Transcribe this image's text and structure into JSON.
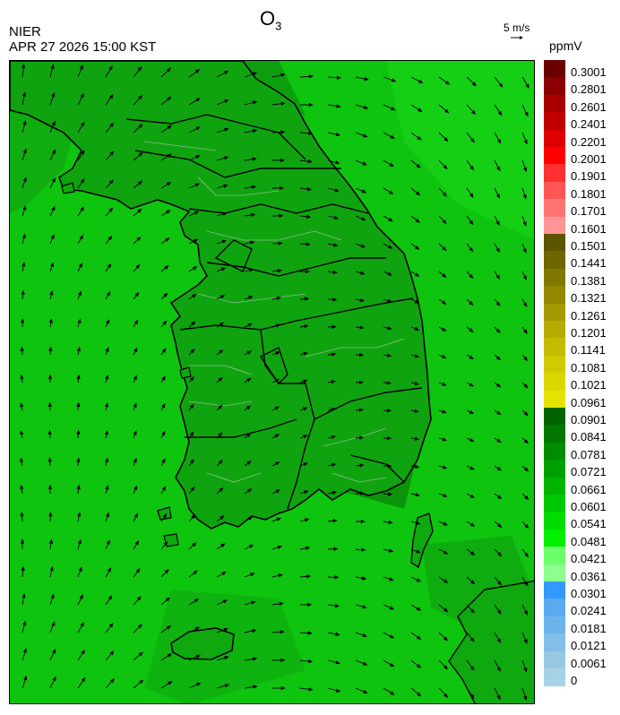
{
  "header": {
    "pollutant": "O",
    "pollutant_sub": "3",
    "agency": "NIER",
    "timestamp": "APR 27 2026 15:00 KST",
    "wind_reference": "5 m/s",
    "unit": "ppmV"
  },
  "map": {
    "region": "Korean Peninsula",
    "sea_color": "#0fc40f",
    "land_color": "#0fa80f",
    "coast_color": "#000000",
    "admin_border_color": "#c8c8c8",
    "wind_arrow_color": "#000000"
  },
  "legend": {
    "bins": [
      {
        "label": "0.3001",
        "color": "#6b0000"
      },
      {
        "label": "0.2801",
        "color": "#8b0000"
      },
      {
        "label": "0.2601",
        "color": "#a80000"
      },
      {
        "label": "0.2401",
        "color": "#c00000"
      },
      {
        "label": "0.2201",
        "color": "#dc0000"
      },
      {
        "label": "0.2001",
        "color": "#ff0000"
      },
      {
        "label": "0.1901",
        "color": "#ff3030"
      },
      {
        "label": "0.1801",
        "color": "#ff5555"
      },
      {
        "label": "0.1701",
        "color": "#ff7575"
      },
      {
        "label": "0.1601",
        "color": "#ff9696"
      },
      {
        "label": "0.1501",
        "color": "#5c5500"
      },
      {
        "label": "0.1441",
        "color": "#6e6600"
      },
      {
        "label": "0.1381",
        "color": "#807700"
      },
      {
        "label": "0.1321",
        "color": "#928800"
      },
      {
        "label": "0.1261",
        "color": "#a49a00"
      },
      {
        "label": "0.1201",
        "color": "#b6ab00"
      },
      {
        "label": "0.1141",
        "color": "#c4bb00"
      },
      {
        "label": "0.1081",
        "color": "#d2ca00"
      },
      {
        "label": "0.1021",
        "color": "#dcd600"
      },
      {
        "label": "0.0961",
        "color": "#e6e200"
      },
      {
        "label": "0.0901",
        "color": "#006400"
      },
      {
        "label": "0.0841",
        "color": "#007800"
      },
      {
        "label": "0.0781",
        "color": "#008c00"
      },
      {
        "label": "0.0721",
        "color": "#00a000"
      },
      {
        "label": "0.0661",
        "color": "#00b400"
      },
      {
        "label": "0.0601",
        "color": "#00c800"
      },
      {
        "label": "0.0541",
        "color": "#00dc00"
      },
      {
        "label": "0.0481",
        "color": "#00f000"
      },
      {
        "label": "0.0421",
        "color": "#6cff6c"
      },
      {
        "label": "0.0361",
        "color": "#8cff8c"
      },
      {
        "label": "0.0301",
        "color": "#3399ff"
      },
      {
        "label": "0.0241",
        "color": "#5aaaf0"
      },
      {
        "label": "0.0181",
        "color": "#6eb4ec"
      },
      {
        "label": "0.0121",
        "color": "#82bee8"
      },
      {
        "label": "0.0061",
        "color": "#96c8e4"
      },
      {
        "label": "0",
        "color": "#a6d2e6"
      }
    ]
  }
}
